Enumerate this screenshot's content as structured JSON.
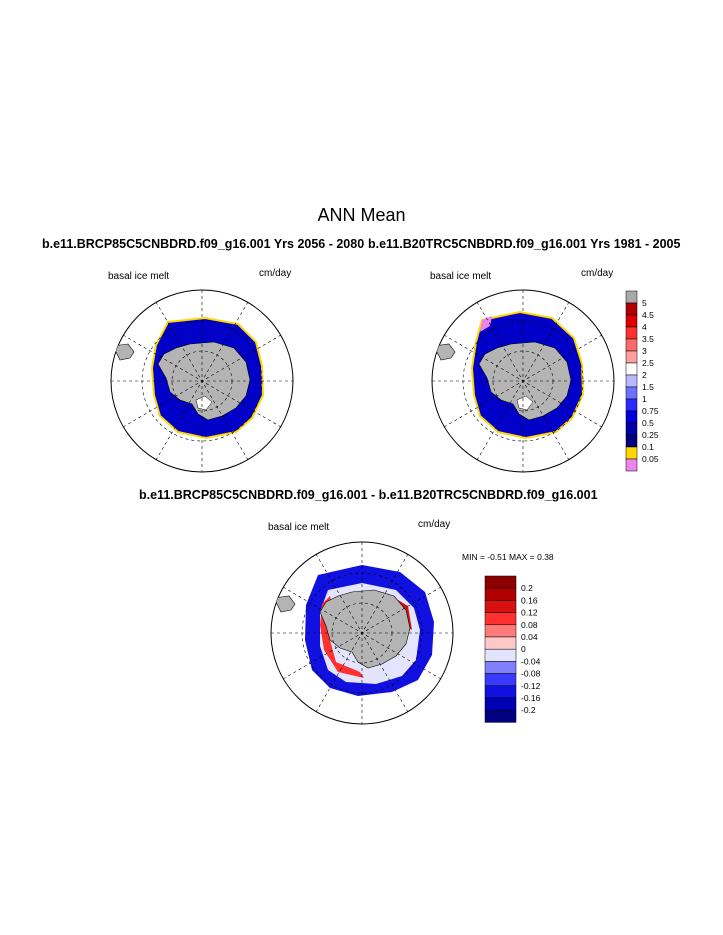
{
  "page_title": "ANN Mean",
  "top_left": {
    "case_title": "b.e11.BRCP85C5CNBDRD.f09_g16.001  Yrs 2056 - 2080",
    "variable": "basal ice melt",
    "units": "cm/day"
  },
  "top_right": {
    "case_title": "b.e11.B20TRC5CNBDRD.f09_g16.001  Yrs 1981 - 2005",
    "variable": "basal ice melt",
    "units": "cm/day"
  },
  "diff": {
    "case_title": "b.e11.BRCP85C5CNBDRD.f09_g16.001 - b.e11.B20TRC5CNBDRD.f09_g16.001",
    "variable": "basal ice melt",
    "units": "cm/day",
    "stats": "MIN =  -0.51 MAX =   0.38"
  },
  "colorbar_top": {
    "labels": [
      "5",
      "4.5",
      "4",
      "3.5",
      "3",
      "2.5",
      "2",
      "1.5",
      "1",
      "0.75",
      "0.5",
      "0.25",
      "0.1",
      "0.05"
    ],
    "colors": [
      "#a9a9a9",
      "#b00000",
      "#e00000",
      "#ff3030",
      "#ff6a6a",
      "#ffa0a0",
      "#ffffff",
      "#b8b8ff",
      "#7070ff",
      "#2a2aff",
      "#0000dd",
      "#0000a8",
      "#000080",
      "#ffd700",
      "#ee82ee"
    ]
  },
  "colorbar_diff": {
    "labels": [
      "0.2",
      "0.16",
      "0.12",
      "0.08",
      "0.04",
      "0",
      "-0.04",
      "-0.08",
      "-0.12",
      "-0.16",
      "-0.2"
    ],
    "colors": [
      "#8b0000",
      "#b00000",
      "#d81010",
      "#ff3030",
      "#ff7a7a",
      "#ffc8c8",
      "#e4e4ff",
      "#8080ff",
      "#3a3aff",
      "#1010e0",
      "#0000b4",
      "#000080"
    ]
  },
  "map_colors": {
    "land": "#b4b4b4",
    "ocean_melt": "#0000c8",
    "edge": "#ffd700",
    "grid": "#000000"
  }
}
